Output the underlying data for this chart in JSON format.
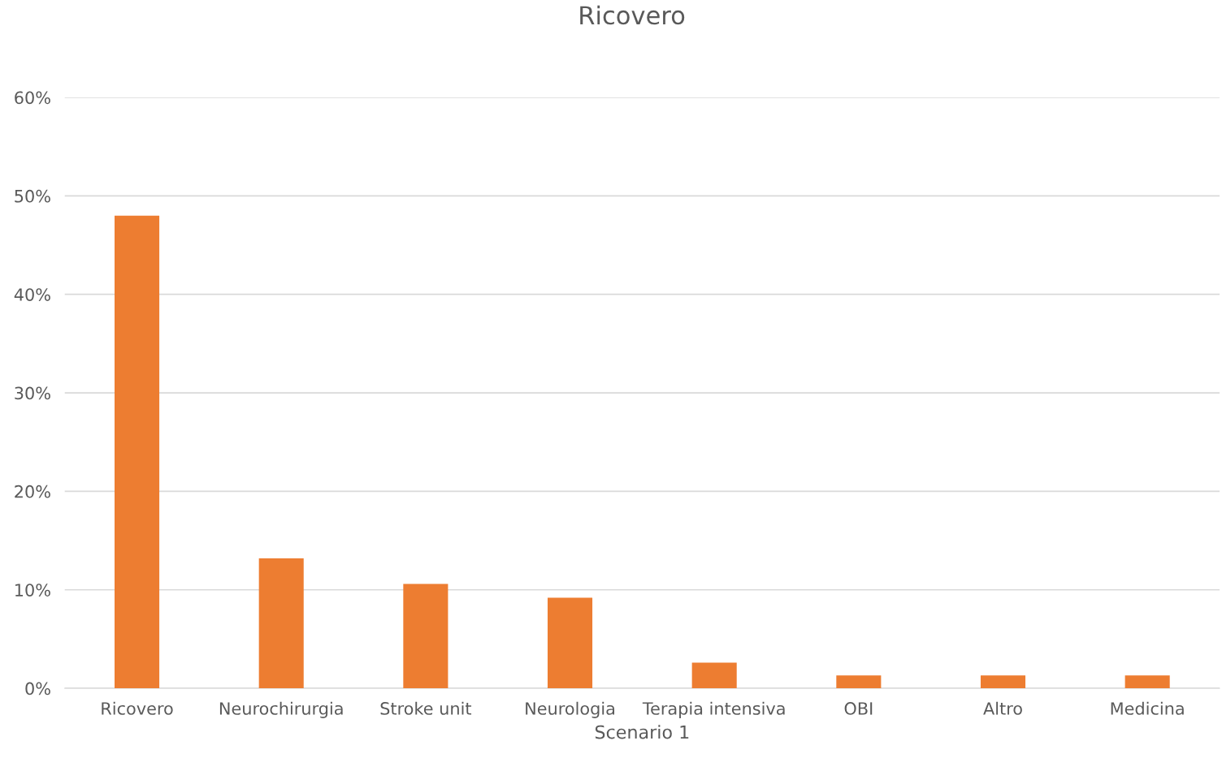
{
  "chart_data": {
    "type": "bar",
    "title": "Ricovero",
    "xlabel": "Scenario 1",
    "categories": [
      "Ricovero",
      "Neurochirurgia",
      "Stroke unit",
      "Neurologia",
      "Terapia intensiva",
      "OBI",
      "Altro",
      "Medicina"
    ],
    "values": [
      48,
      13.2,
      10.6,
      9.2,
      2.6,
      1.3,
      1.3,
      1.3
    ],
    "color": "#ed7d31",
    "ylim": [
      0,
      60
    ],
    "yticks": [
      {
        "value": 0,
        "label": "0%"
      },
      {
        "value": 10,
        "label": "10%"
      },
      {
        "value": 20,
        "label": "20%"
      },
      {
        "value": 30,
        "label": "30%"
      },
      {
        "value": 40,
        "label": "40%"
      },
      {
        "value": 50,
        "label": "50%"
      },
      {
        "value": 60,
        "label": "60%"
      }
    ],
    "grid": "y",
    "legend": false
  }
}
